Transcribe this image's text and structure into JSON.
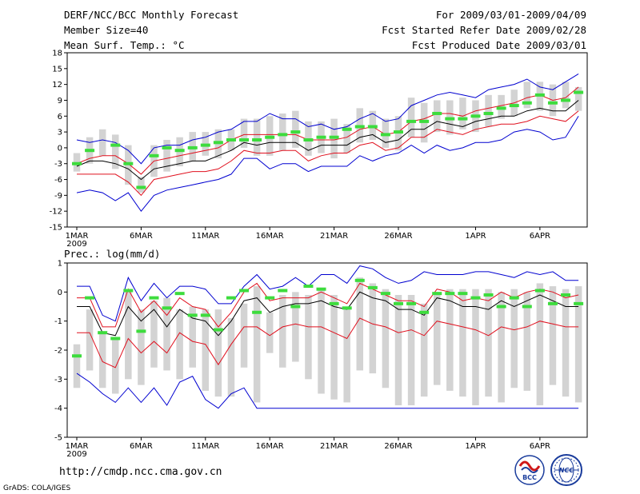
{
  "header": {
    "line1_left": "DERF/NCC/BCC Monthly Forecast",
    "line2_left": "Member Size=40",
    "line3_left": "Mean Surf. Temp.: °C",
    "line1_right": "For 2009/03/01-2009/04/09",
    "line2_right": "Fcst Started Refer Date 2009/02/28",
    "line3_right": "Fcst Produced Date 2009/03/01"
  },
  "footer": {
    "url": "http://cmdp.ncc.cma.gov.cn",
    "credit": "GrADS: COLA/IGES",
    "logo_bcc": "BCC",
    "logo_ncc": "NCC"
  },
  "colors": {
    "box": "#d3d3d3",
    "median": "#000000",
    "inner": "#e0101e",
    "outer": "#0000d0",
    "observed": "#3ddc3d"
  },
  "chart_data": [
    {
      "type": "box-ensemble",
      "title": "Mean Surf. Temp.: °C",
      "x_tick_labels": [
        "1MAR",
        "6MAR",
        "11MAR",
        "16MAR",
        "21MAR",
        "26MAR",
        "1APR",
        "6APR"
      ],
      "x_tick_days": [
        1,
        6,
        11,
        16,
        21,
        26,
        32,
        37
      ],
      "x_sub_label": "2009",
      "days": [
        1,
        2,
        3,
        4,
        5,
        6,
        7,
        8,
        9,
        10,
        11,
        12,
        13,
        14,
        15,
        16,
        17,
        18,
        19,
        20,
        21,
        22,
        23,
        24,
        25,
        26,
        27,
        28,
        29,
        30,
        31,
        32,
        33,
        34,
        35,
        36,
        37,
        38,
        39,
        40
      ],
      "ylim": [
        -15,
        18
      ],
      "y_ticks": [
        -15,
        -12,
        -9,
        -6,
        -3,
        0,
        3,
        6,
        9,
        12,
        15,
        18
      ],
      "box_low": [
        -4.5,
        -3,
        -1.5,
        -4,
        -7,
        -8.5,
        -5.5,
        -4.5,
        -3.5,
        -2.5,
        -1.5,
        -2,
        -0.5,
        0,
        -1.5,
        -1.5,
        -0.5,
        0,
        -1.5,
        -1,
        -2,
        -1,
        1,
        1.5,
        0,
        -0.5,
        2,
        1,
        3,
        2.5,
        3.5,
        3,
        4,
        5.5,
        6,
        7.5,
        7,
        6,
        7.5,
        7
      ],
      "box_high": [
        -1,
        2,
        3.5,
        2.5,
        0.5,
        -5.5,
        0.5,
        1.5,
        2,
        3,
        3,
        3.5,
        3.5,
        5.5,
        5.5,
        6,
        6.5,
        7,
        5,
        5,
        5.5,
        4.5,
        7.5,
        7,
        5.5,
        6,
        9.5,
        8.5,
        9,
        9,
        9.5,
        9,
        10,
        10,
        11,
        12.5,
        12.5,
        12,
        12.5,
        11.5
      ],
      "median": [
        -3.5,
        -2.5,
        -2.5,
        -3,
        -4,
        -6,
        -4,
        -3.5,
        -3,
        -2.5,
        -2.5,
        -1.5,
        -0.5,
        1,
        0.5,
        1,
        1,
        1,
        -0.5,
        0.5,
        0.5,
        0.5,
        2,
        2.5,
        1,
        1.5,
        3.5,
        3.5,
        5,
        4.5,
        4,
        5,
        5.5,
        6,
        6,
        7,
        7.5,
        7,
        7,
        9
      ],
      "inner_upper": [
        -3,
        -2,
        -1.5,
        -1.5,
        -3,
        -5,
        -2.5,
        -2,
        -1.5,
        -1,
        -0.5,
        0,
        1.5,
        2.5,
        2.5,
        2.5,
        2.5,
        2.5,
        1.5,
        1.5,
        1.5,
        2,
        3.5,
        4,
        2.5,
        3,
        5,
        5.5,
        6.5,
        6.5,
        6,
        7,
        7.5,
        8,
        8.5,
        9.5,
        10,
        9,
        9.5,
        11.5
      ],
      "inner_lower": [
        -5,
        -5,
        -5,
        -5,
        -6.5,
        -9,
        -6,
        -5.5,
        -5,
        -4.5,
        -4.5,
        -4,
        -2.5,
        -0.5,
        -1,
        -1,
        -0.5,
        -0.5,
        -2.5,
        -1.5,
        -1,
        -1,
        0.5,
        1,
        -0.5,
        0,
        2,
        2,
        3.5,
        3,
        2.5,
        3.5,
        4,
        4.5,
        4.5,
        5,
        6,
        5.5,
        5,
        7
      ],
      "outer_upper": [
        1.5,
        1,
        1.5,
        1,
        -0.5,
        -3,
        0,
        0.5,
        0.5,
        1.5,
        2,
        3,
        3.5,
        5,
        5,
        6.5,
        5.5,
        5.5,
        4,
        4.5,
        3.5,
        4,
        5.5,
        6.5,
        5,
        5.5,
        8,
        9,
        10,
        10.5,
        10,
        9.5,
        11,
        11.5,
        12,
        13,
        11.5,
        11,
        12.5,
        14
      ],
      "outer_lower": [
        -8.5,
        -8,
        -8.5,
        -10,
        -8.5,
        -12,
        -9,
        -8,
        -7.5,
        -7,
        -6.5,
        -6,
        -5,
        -2,
        -2,
        -4,
        -3,
        -3,
        -4.5,
        -3.5,
        -3.5,
        -3.5,
        -1.5,
        -2.5,
        -1.5,
        -1,
        0.5,
        -1,
        0.5,
        -0.5,
        0,
        1,
        1,
        1.5,
        3,
        3.5,
        3,
        1.5,
        2,
        6
      ],
      "observed": [
        -3,
        -0.5,
        null,
        0.5,
        -3,
        -7.5,
        -1.5,
        0,
        -0.5,
        0,
        0.5,
        1,
        1.5,
        1.5,
        1.5,
        2,
        2.5,
        3,
        1.5,
        2,
        2,
        3.5,
        4,
        4,
        2.5,
        3,
        5,
        5,
        6.5,
        5.5,
        5.5,
        6,
        6.5,
        7.5,
        8,
        8.5,
        10,
        8.5,
        9,
        10.5
      ]
    },
    {
      "type": "box-ensemble",
      "title": "Prec.: log(mm/d)",
      "x_tick_labels": [
        "1MAR",
        "6MAR",
        "11MAR",
        "16MAR",
        "21MAR",
        "26MAR",
        "1APR",
        "6APR"
      ],
      "x_tick_days": [
        1,
        6,
        11,
        16,
        21,
        26,
        32,
        37
      ],
      "x_sub_label": "2009",
      "days": [
        1,
        2,
        3,
        4,
        5,
        6,
        7,
        8,
        9,
        10,
        11,
        12,
        13,
        14,
        15,
        16,
        17,
        18,
        19,
        20,
        21,
        22,
        23,
        24,
        25,
        26,
        27,
        28,
        29,
        30,
        31,
        32,
        33,
        34,
        35,
        36,
        37,
        38,
        39,
        40
      ],
      "ylim": [
        -5,
        1
      ],
      "y_ticks": [
        -5,
        -4,
        -3,
        -2,
        -1,
        0,
        1
      ],
      "box_low": [
        -3.3,
        -2.7,
        -3.3,
        -3.5,
        -3.0,
        -3.2,
        -2.6,
        -2.7,
        -3.0,
        -2.6,
        -3.4,
        -3.6,
        -3.6,
        -2.6,
        -3.8,
        -2.1,
        -2.6,
        -2.4,
        -3.0,
        -3.5,
        -3.7,
        -3.8,
        -2.7,
        -2.8,
        -3.3,
        -3.9,
        -3.9,
        -3.6,
        -3.2,
        -3.4,
        -3.6,
        -3.9,
        -3.6,
        -3.8,
        -3.3,
        -3.4,
        -3.9,
        -3.2,
        -3.6,
        -3.8
      ],
      "box_high": [
        -1.8,
        -0.6,
        -1.4,
        -1.6,
        0.1,
        -0.6,
        -0.3,
        -0.2,
        -0.6,
        -0.5,
        -0.6,
        -0.6,
        -0.9,
        -0.4,
        0.2,
        -0.7,
        -0.1,
        0,
        -0.1,
        0.1,
        -0.1,
        -0.5,
        0.5,
        0.3,
        0.1,
        -0.1,
        -0.1,
        -0.4,
        0,
        0.1,
        0.1,
        0.1,
        0.1,
        0,
        0.1,
        0,
        0.3,
        0.2,
        0.1,
        0.2
      ],
      "median": [
        -0.5,
        -0.5,
        -1.4,
        -1.5,
        -0.5,
        -1,
        -0.6,
        -1.2,
        -0.6,
        -0.9,
        -1,
        -1.5,
        -1,
        -0.3,
        -0.2,
        -0.7,
        -0.5,
        -0.4,
        -0.4,
        -0.3,
        -0.5,
        -0.6,
        0,
        -0.2,
        -0.3,
        -0.6,
        -0.6,
        -0.8,
        -0.2,
        -0.3,
        -0.5,
        -0.5,
        -0.6,
        -0.3,
        -0.5,
        -0.3,
        -0.1,
        -0.3,
        -0.5,
        -0.5
      ],
      "inner_upper": [
        -0.2,
        -0.2,
        -1.2,
        -1.2,
        0.1,
        -0.7,
        -0.3,
        -0.8,
        -0.2,
        -0.5,
        -0.6,
        -1.2,
        -0.7,
        0,
        0.3,
        -0.3,
        -0.2,
        -0.2,
        -0.2,
        0,
        -0.2,
        -0.4,
        0.3,
        0.1,
        -0.1,
        -0.3,
        -0.3,
        -0.5,
        0.1,
        0,
        -0.3,
        -0.2,
        -0.3,
        0,
        -0.2,
        0,
        0.1,
        0,
        -0.2,
        -0.1
      ],
      "inner_lower": [
        -1.4,
        -1.4,
        -2.4,
        -2.6,
        -1.6,
        -2.1,
        -1.7,
        -2.1,
        -1.4,
        -1.7,
        -1.8,
        -2.5,
        -1.8,
        -1.2,
        -1.2,
        -1.5,
        -1.2,
        -1.1,
        -1.2,
        -1.2,
        -1.4,
        -1.6,
        -0.9,
        -1.1,
        -1.2,
        -1.4,
        -1.3,
        -1.5,
        -1,
        -1.1,
        -1.2,
        -1.3,
        -1.5,
        -1.2,
        -1.3,
        -1.2,
        -1,
        -1.1,
        -1.2,
        -1.2
      ],
      "outer_upper": [
        0.2,
        0.2,
        -0.8,
        -1,
        0.5,
        -0.3,
        0.3,
        -0.2,
        0.2,
        0.2,
        0.1,
        -0.4,
        -0.4,
        0.2,
        0.6,
        0.1,
        0.2,
        0.5,
        0.2,
        0.6,
        0.6,
        0.3,
        0.9,
        0.8,
        0.5,
        0.3,
        0.4,
        0.7,
        0.6,
        0.6,
        0.6,
        0.7,
        0.7,
        0.6,
        0.5,
        0.7,
        0.6,
        0.7,
        0.4,
        0.4
      ],
      "outer_lower": [
        -2.8,
        -3.1,
        -3.5,
        -3.8,
        -3.3,
        -3.8,
        -3.3,
        -3.9,
        -3.1,
        -2.9,
        -3.7,
        -4.0,
        -3.5,
        -3.3,
        -4.0,
        -4.0,
        -4.0,
        -4.0,
        -4.0,
        -4.0,
        -4.0,
        -4.0,
        -4.0,
        -4.0,
        -4.0,
        -4.0,
        -4.0,
        -4.0,
        -4.0,
        -4.0,
        -4.0,
        -4.0,
        -4.0,
        -4.0,
        -4.0,
        -4.0,
        -4.0,
        -4.0,
        -4.0,
        -4.0
      ],
      "observed": [
        -2.2,
        -0.2,
        -1.4,
        -1.6,
        0.05,
        -1.35,
        -0.2,
        -0.55,
        -0.05,
        -0.8,
        -0.8,
        -1.3,
        -0.2,
        0.05,
        -0.7,
        -0.2,
        0.05,
        -0.5,
        0.2,
        0.1,
        -0.4,
        -0.55,
        0.4,
        0.15,
        -0.05,
        -0.4,
        -0.4,
        -0.7,
        -0.05,
        -0.05,
        -0.05,
        -0.2,
        -0.1,
        -0.5,
        -0.2,
        -0.5,
        0.05,
        -0.4,
        -0.1,
        -0.4
      ]
    }
  ]
}
